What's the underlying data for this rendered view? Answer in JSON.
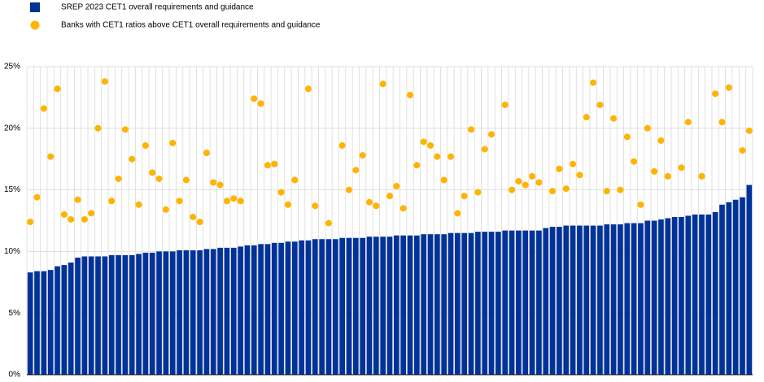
{
  "chart_data": {
    "type": "combo",
    "ylim": [
      0,
      25
    ],
    "yticks": [
      {
        "value": 0,
        "label": "0%"
      },
      {
        "value": 5,
        "label": "5%"
      },
      {
        "value": 10,
        "label": "10%"
      },
      {
        "value": 15,
        "label": "15%"
      },
      {
        "value": 20,
        "label": "20%"
      },
      {
        "value": 25,
        "label": "25%"
      }
    ],
    "grid": true,
    "legend": "top-left",
    "series": [
      {
        "name": "SREP 2023 CET1 overall requirements and guidance",
        "type": "bar",
        "color": "#003299",
        "values": [
          8.3,
          8.4,
          8.4,
          8.5,
          8.8,
          8.9,
          9.1,
          9.5,
          9.6,
          9.6,
          9.6,
          9.6,
          9.7,
          9.7,
          9.7,
          9.7,
          9.8,
          9.9,
          9.9,
          10.0,
          10.0,
          10.0,
          10.1,
          10.1,
          10.1,
          10.1,
          10.2,
          10.2,
          10.3,
          10.3,
          10.3,
          10.4,
          10.5,
          10.5,
          10.6,
          10.6,
          10.7,
          10.7,
          10.8,
          10.8,
          10.9,
          10.9,
          11.0,
          11.0,
          11.0,
          11.0,
          11.1,
          11.1,
          11.1,
          11.1,
          11.2,
          11.2,
          11.2,
          11.2,
          11.3,
          11.3,
          11.3,
          11.3,
          11.4,
          11.4,
          11.4,
          11.4,
          11.5,
          11.5,
          11.5,
          11.5,
          11.6,
          11.6,
          11.6,
          11.6,
          11.7,
          11.7,
          11.7,
          11.7,
          11.7,
          11.7,
          11.9,
          12.0,
          12.0,
          12.1,
          12.1,
          12.1,
          12.1,
          12.1,
          12.1,
          12.2,
          12.2,
          12.2,
          12.3,
          12.3,
          12.3,
          12.5,
          12.5,
          12.6,
          12.7,
          12.8,
          12.8,
          12.9,
          13.0,
          13.0,
          13.0,
          13.2,
          13.8,
          14.0,
          14.2,
          14.4,
          15.4
        ]
      },
      {
        "name": "Banks with CET1 ratios above CET1 overall requirements and guidance",
        "type": "scatter",
        "color": "#ffb400",
        "values": [
          12.4,
          14.4,
          21.6,
          17.7,
          23.2,
          13.0,
          12.6,
          14.2,
          12.6,
          13.1,
          20.0,
          23.8,
          14.1,
          15.9,
          19.9,
          17.5,
          13.8,
          18.6,
          16.4,
          15.9,
          13.4,
          18.8,
          14.1,
          15.8,
          12.8,
          12.4,
          18.0,
          15.6,
          15.4,
          14.1,
          14.3,
          14.1,
          null,
          22.4,
          22.0,
          17.0,
          17.1,
          14.8,
          13.8,
          15.8,
          null,
          23.2,
          13.7,
          null,
          12.3,
          null,
          18.6,
          15.0,
          16.6,
          17.8,
          14.0,
          13.7,
          23.6,
          14.5,
          15.3,
          13.5,
          22.7,
          17.0,
          18.9,
          18.6,
          17.7,
          15.8,
          17.7,
          13.1,
          14.5,
          19.9,
          14.8,
          18.3,
          19.5,
          null,
          21.9,
          15.0,
          15.7,
          15.4,
          16.1,
          15.6,
          null,
          14.9,
          16.7,
          15.1,
          17.1,
          16.2,
          20.9,
          23.7,
          21.9,
          14.9,
          20.8,
          15.0,
          19.3,
          17.3,
          13.8,
          20.0,
          16.5,
          19.0,
          16.1,
          null,
          16.8,
          20.5,
          null,
          16.1,
          null,
          22.8,
          20.5,
          23.3,
          null,
          18.2,
          19.8
        ]
      }
    ]
  }
}
